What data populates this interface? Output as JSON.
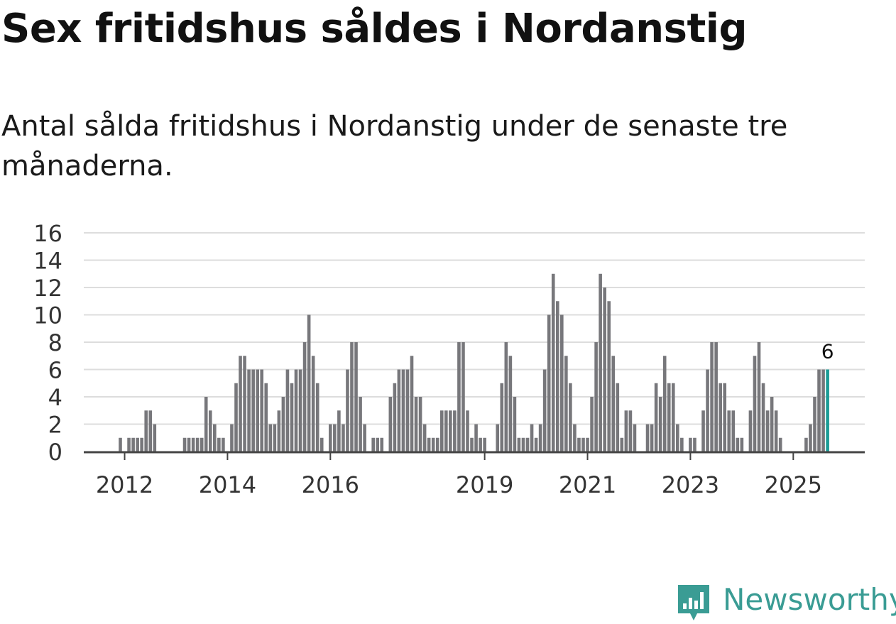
{
  "title": "Sex fritidshus såldes i Nordanstig",
  "subtitle": "Antal sålda fritidshus i Nordanstig under de senaste tre månaderna.",
  "brand": {
    "name": "Newsworthy",
    "color": "#3a9c94"
  },
  "colors": {
    "bar": "#77777b",
    "highlight": "#1a9c96",
    "grid": "#dddddd",
    "axis": "#444444"
  },
  "chart_data": {
    "type": "bar",
    "title": "Sex fritidshus såldes i Nordanstig",
    "xlabel": "",
    "ylabel": "",
    "ylim": [
      0,
      16
    ],
    "yticks": [
      "0",
      "2",
      "4",
      "6",
      "8",
      "10",
      "12",
      "14",
      "16"
    ],
    "xtick_labels": [
      "2012",
      "2014",
      "2016",
      "2019",
      "2021",
      "2023",
      "2025"
    ],
    "grid": true,
    "last_label": "6",
    "x": [
      "2011-12",
      "2012-01",
      "2012-02",
      "2012-03",
      "2012-04",
      "2012-05",
      "2012-06",
      "2012-07",
      "2012-08",
      "2012-09",
      "2012-10",
      "2012-11",
      "2012-12",
      "2013-01",
      "2013-02",
      "2013-03",
      "2013-04",
      "2013-05",
      "2013-06",
      "2013-07",
      "2013-08",
      "2013-09",
      "2013-10",
      "2013-11",
      "2013-12",
      "2014-01",
      "2014-02",
      "2014-03",
      "2014-04",
      "2014-05",
      "2014-06",
      "2014-07",
      "2014-08",
      "2014-09",
      "2014-10",
      "2014-11",
      "2014-12",
      "2015-01",
      "2015-02",
      "2015-03",
      "2015-04",
      "2015-05",
      "2015-06",
      "2015-07",
      "2015-08",
      "2015-09",
      "2015-10",
      "2015-11",
      "2015-12",
      "2016-01",
      "2016-02",
      "2016-03",
      "2016-04",
      "2016-05",
      "2016-06",
      "2016-07",
      "2016-08",
      "2016-09",
      "2016-10",
      "2016-11",
      "2016-12",
      "2017-01",
      "2017-02",
      "2017-03",
      "2017-04",
      "2017-05",
      "2017-06",
      "2017-07",
      "2017-08",
      "2017-09",
      "2017-10",
      "2017-11",
      "2017-12",
      "2018-01",
      "2018-02",
      "2018-03",
      "2018-04",
      "2018-05",
      "2018-06",
      "2018-07",
      "2018-08",
      "2018-09",
      "2018-10",
      "2018-11",
      "2018-12",
      "2019-01",
      "2019-02",
      "2019-03",
      "2019-04",
      "2019-05",
      "2019-06",
      "2019-07",
      "2019-08",
      "2019-09",
      "2019-10",
      "2019-11",
      "2019-12",
      "2020-01",
      "2020-02",
      "2020-03",
      "2020-04",
      "2020-05",
      "2020-06",
      "2020-07",
      "2020-08",
      "2020-09",
      "2020-10",
      "2020-11",
      "2020-12",
      "2021-01",
      "2021-02",
      "2021-03",
      "2021-04",
      "2021-05",
      "2021-06",
      "2021-07",
      "2021-08",
      "2021-09",
      "2021-10",
      "2021-11",
      "2021-12",
      "2022-01",
      "2022-02",
      "2022-03",
      "2022-04",
      "2022-05",
      "2022-06",
      "2022-07",
      "2022-08",
      "2022-09",
      "2022-10",
      "2022-11",
      "2022-12",
      "2023-01",
      "2023-02",
      "2023-03",
      "2023-04",
      "2023-05",
      "2023-06",
      "2023-07",
      "2023-08",
      "2023-09",
      "2023-10",
      "2023-11",
      "2023-12",
      "2024-01",
      "2024-02",
      "2024-03",
      "2024-04",
      "2024-05",
      "2024-06",
      "2024-07",
      "2024-08",
      "2024-09",
      "2024-10",
      "2024-11",
      "2024-12",
      "2025-01",
      "2025-02",
      "2025-03",
      "2025-04",
      "2025-05",
      "2025-06",
      "2025-07",
      "2025-08",
      "2025-09"
    ],
    "values": [
      1,
      0,
      1,
      1,
      1,
      1,
      3,
      3,
      2,
      0,
      0,
      0,
      0,
      0,
      0,
      1,
      1,
      1,
      1,
      1,
      4,
      3,
      2,
      1,
      1,
      0,
      2,
      5,
      7,
      7,
      6,
      6,
      6,
      6,
      5,
      2,
      2,
      3,
      4,
      6,
      5,
      6,
      6,
      8,
      10,
      7,
      5,
      1,
      0,
      2,
      2,
      3,
      2,
      6,
      8,
      8,
      4,
      2,
      0,
      1,
      1,
      1,
      0,
      4,
      5,
      6,
      6,
      6,
      7,
      4,
      4,
      2,
      1,
      1,
      1,
      3,
      3,
      3,
      3,
      8,
      8,
      3,
      1,
      2,
      1,
      1,
      0,
      0,
      2,
      5,
      8,
      7,
      4,
      1,
      1,
      1,
      2,
      1,
      2,
      6,
      10,
      13,
      11,
      10,
      7,
      5,
      2,
      1,
      1,
      1,
      4,
      8,
      13,
      12,
      11,
      7,
      5,
      1,
      3,
      3,
      2,
      0,
      0,
      2,
      2,
      5,
      4,
      7,
      5,
      5,
      2,
      1,
      0,
      1,
      1,
      0,
      3,
      6,
      8,
      8,
      5,
      5,
      3,
      3,
      1,
      1,
      0,
      3,
      7,
      8,
      5,
      3,
      4,
      3,
      1,
      0,
      0,
      0,
      0,
      0,
      1,
      2,
      4,
      6,
      6,
      6
    ]
  }
}
